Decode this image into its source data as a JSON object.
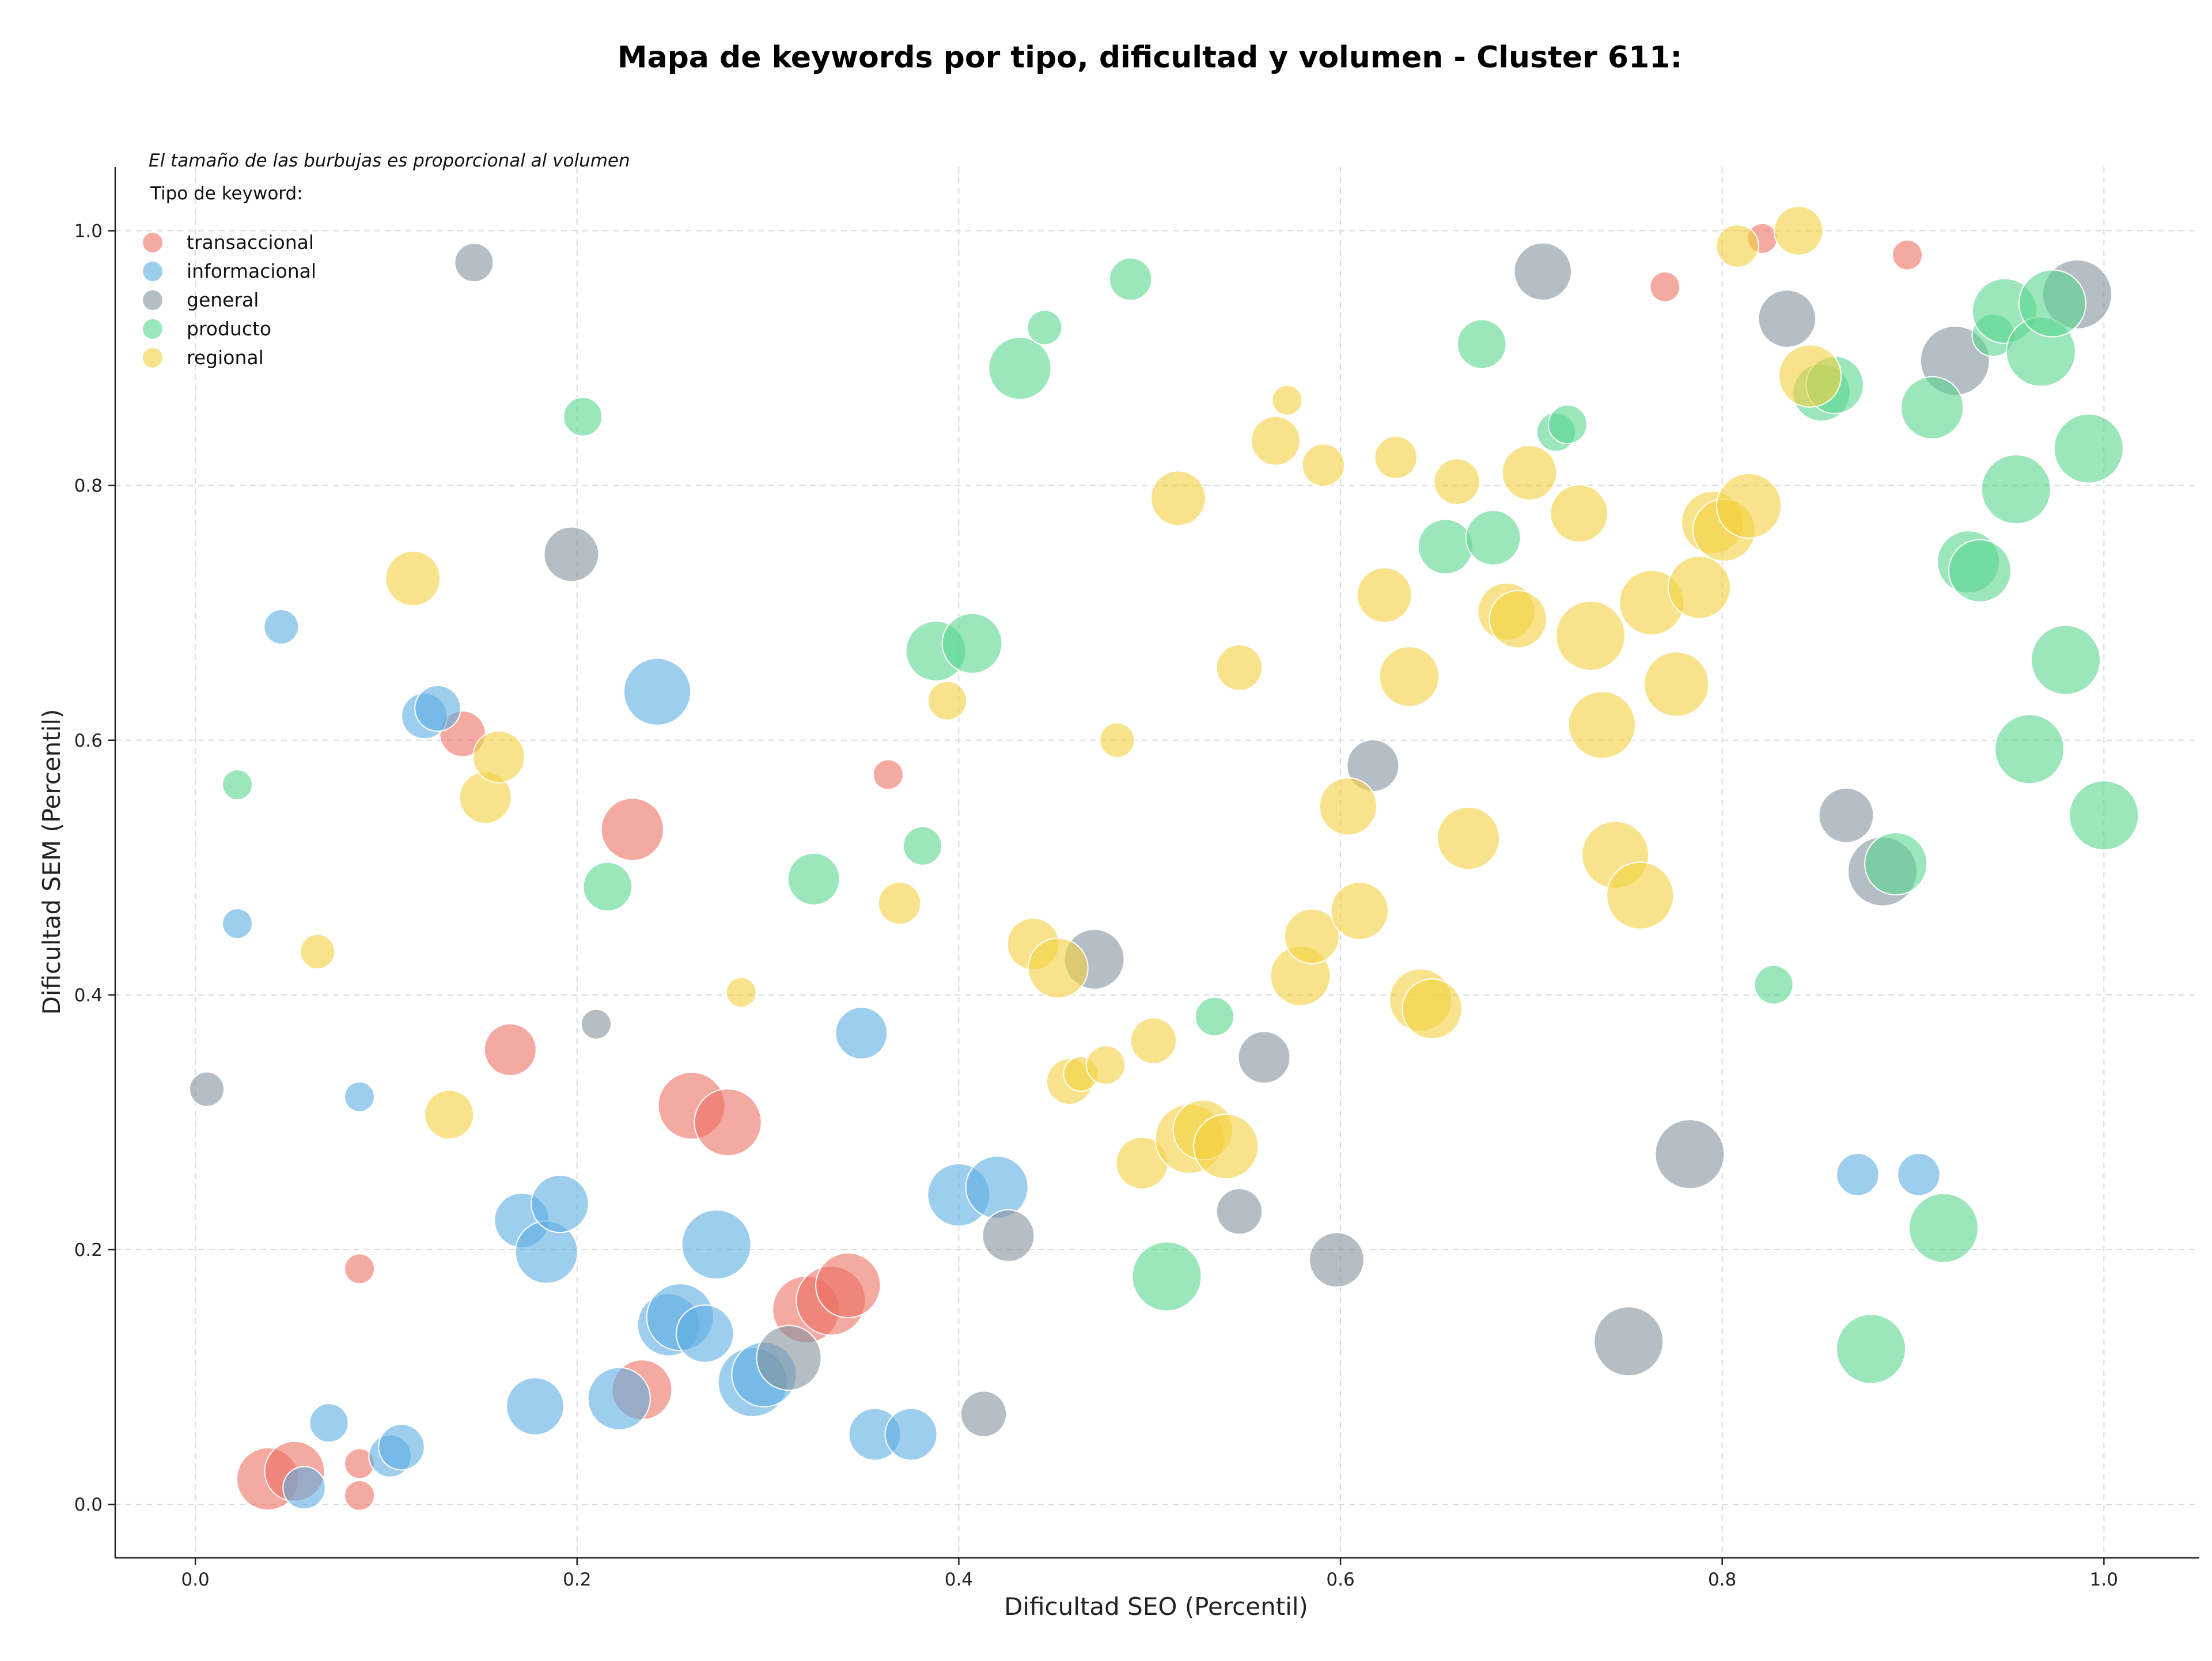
{
  "chart_data": {
    "type": "scatter",
    "title": "Mapa de keywords por tipo, dificultad y volumen - Cluster 611:",
    "xlabel": "Dificultad SEO (Percentil)",
    "ylabel": "Dificultad SEM (Percentil)",
    "xlim": [
      -0.042,
      1.05
    ],
    "ylim": [
      -0.042,
      1.05
    ],
    "x_ticks": [
      "0.0",
      "0.2",
      "0.4",
      "0.6",
      "0.8",
      "1.0"
    ],
    "y_ticks": [
      "0.0",
      "0.2",
      "0.4",
      "0.6",
      "0.8",
      "1.0"
    ],
    "grid": true,
    "annotation": "El tamaño de las burbujas es proporcional al volumen",
    "legend_title": "Tipo de keyword:",
    "legend_position": "top-left",
    "size_encoding": "volume",
    "series": [
      {
        "name": "transaccional",
        "color": "#ec7063",
        "points": [
          {
            "x": 0.038,
            "y": 0.02,
            "size": 13
          },
          {
            "x": 0.052,
            "y": 0.026,
            "size": 12
          },
          {
            "x": 0.086,
            "y": 0.007,
            "size": 3
          },
          {
            "x": 0.086,
            "y": 0.032,
            "size": 3
          },
          {
            "x": 0.086,
            "y": 0.185,
            "size": 3
          },
          {
            "x": 0.14,
            "y": 0.605,
            "size": 7
          },
          {
            "x": 0.165,
            "y": 0.357,
            "size": 9
          },
          {
            "x": 0.229,
            "y": 0.53,
            "size": 13
          },
          {
            "x": 0.234,
            "y": 0.09,
            "size": 12
          },
          {
            "x": 0.26,
            "y": 0.313,
            "size": 15
          },
          {
            "x": 0.279,
            "y": 0.3,
            "size": 15
          },
          {
            "x": 0.32,
            "y": 0.153,
            "size": 15
          },
          {
            "x": 0.333,
            "y": 0.16,
            "size": 16
          },
          {
            "x": 0.342,
            "y": 0.172,
            "size": 14
          },
          {
            "x": 0.363,
            "y": 0.573,
            "size": 3
          },
          {
            "x": 0.77,
            "y": 0.956,
            "size": 3
          },
          {
            "x": 0.821,
            "y": 0.994,
            "size": 3
          },
          {
            "x": 0.897,
            "y": 0.981,
            "size": 3
          }
        ]
      },
      {
        "name": "informacional",
        "color": "#5dade2",
        "points": [
          {
            "x": 0.022,
            "y": 0.456,
            "size": 3
          },
          {
            "x": 0.045,
            "y": 0.689,
            "size": 4
          },
          {
            "x": 0.057,
            "y": 0.013,
            "size": 6
          },
          {
            "x": 0.07,
            "y": 0.064,
            "size": 5
          },
          {
            "x": 0.086,
            "y": 0.32,
            "size": 3
          },
          {
            "x": 0.102,
            "y": 0.038,
            "size": 6
          },
          {
            "x": 0.108,
            "y": 0.045,
            "size": 7
          },
          {
            "x": 0.12,
            "y": 0.619,
            "size": 7
          },
          {
            "x": 0.127,
            "y": 0.625,
            "size": 7
          },
          {
            "x": 0.171,
            "y": 0.223,
            "size": 10
          },
          {
            "x": 0.178,
            "y": 0.077,
            "size": 11
          },
          {
            "x": 0.184,
            "y": 0.198,
            "size": 13
          },
          {
            "x": 0.191,
            "y": 0.236,
            "size": 11
          },
          {
            "x": 0.222,
            "y": 0.083,
            "size": 13
          },
          {
            "x": 0.242,
            "y": 0.638,
            "size": 15
          },
          {
            "x": 0.248,
            "y": 0.141,
            "size": 13
          },
          {
            "x": 0.254,
            "y": 0.147,
            "size": 15
          },
          {
            "x": 0.267,
            "y": 0.134,
            "size": 11
          },
          {
            "x": 0.273,
            "y": 0.204,
            "size": 16
          },
          {
            "x": 0.292,
            "y": 0.096,
            "size": 16
          },
          {
            "x": 0.298,
            "y": 0.102,
            "size": 14
          },
          {
            "x": 0.349,
            "y": 0.37,
            "size": 9
          },
          {
            "x": 0.356,
            "y": 0.055,
            "size": 9
          },
          {
            "x": 0.375,
            "y": 0.055,
            "size": 9
          },
          {
            "x": 0.4,
            "y": 0.243,
            "size": 13
          },
          {
            "x": 0.42,
            "y": 0.249,
            "size": 13
          },
          {
            "x": 0.871,
            "y": 0.259,
            "size": 6
          },
          {
            "x": 0.903,
            "y": 0.259,
            "size": 6
          }
        ]
      },
      {
        "name": "general",
        "color": "#85929e",
        "points": [
          {
            "x": 0.006,
            "y": 0.326,
            "size": 4
          },
          {
            "x": 0.146,
            "y": 0.975,
            "size": 5
          },
          {
            "x": 0.197,
            "y": 0.746,
            "size": 10
          },
          {
            "x": 0.21,
            "y": 0.377,
            "size": 3
          },
          {
            "x": 0.311,
            "y": 0.115,
            "size": 14
          },
          {
            "x": 0.413,
            "y": 0.071,
            "size": 7
          },
          {
            "x": 0.426,
            "y": 0.211,
            "size": 9
          },
          {
            "x": 0.471,
            "y": 0.428,
            "size": 12
          },
          {
            "x": 0.547,
            "y": 0.23,
            "size": 7
          },
          {
            "x": 0.56,
            "y": 0.351,
            "size": 9
          },
          {
            "x": 0.598,
            "y": 0.192,
            "size": 10
          },
          {
            "x": 0.617,
            "y": 0.58,
            "size": 9
          },
          {
            "x": 0.706,
            "y": 0.968,
            "size": 11
          },
          {
            "x": 0.751,
            "y": 0.128,
            "size": 16
          },
          {
            "x": 0.783,
            "y": 0.275,
            "size": 16
          },
          {
            "x": 0.834,
            "y": 0.931,
            "size": 11
          },
          {
            "x": 0.865,
            "y": 0.541,
            "size": 10
          },
          {
            "x": 0.884,
            "y": 0.497,
            "size": 16
          },
          {
            "x": 0.922,
            "y": 0.898,
            "size": 16
          },
          {
            "x": 0.986,
            "y": 0.95,
            "size": 16
          }
        ]
      },
      {
        "name": "producto",
        "color": "#58d68d",
        "points": [
          {
            "x": 0.022,
            "y": 0.565,
            "size": 3
          },
          {
            "x": 0.203,
            "y": 0.854,
            "size": 5
          },
          {
            "x": 0.216,
            "y": 0.485,
            "size": 8
          },
          {
            "x": 0.324,
            "y": 0.491,
            "size": 9
          },
          {
            "x": 0.381,
            "y": 0.517,
            "size": 5
          },
          {
            "x": 0.388,
            "y": 0.67,
            "size": 12
          },
          {
            "x": 0.407,
            "y": 0.676,
            "size": 12
          },
          {
            "x": 0.432,
            "y": 0.892,
            "size": 13
          },
          {
            "x": 0.445,
            "y": 0.924,
            "size": 4
          },
          {
            "x": 0.49,
            "y": 0.962,
            "size": 6
          },
          {
            "x": 0.509,
            "y": 0.179,
            "size": 16
          },
          {
            "x": 0.534,
            "y": 0.383,
            "size": 5
          },
          {
            "x": 0.655,
            "y": 0.752,
            "size": 10
          },
          {
            "x": 0.674,
            "y": 0.911,
            "size": 8
          },
          {
            "x": 0.68,
            "y": 0.759,
            "size": 10
          },
          {
            "x": 0.713,
            "y": 0.842,
            "size": 5
          },
          {
            "x": 0.719,
            "y": 0.848,
            "size": 5
          },
          {
            "x": 0.827,
            "y": 0.408,
            "size": 5
          },
          {
            "x": 0.852,
            "y": 0.873,
            "size": 11
          },
          {
            "x": 0.859,
            "y": 0.879,
            "size": 11
          },
          {
            "x": 0.878,
            "y": 0.122,
            "size": 16
          },
          {
            "x": 0.891,
            "y": 0.503,
            "size": 13
          },
          {
            "x": 0.91,
            "y": 0.861,
            "size": 13
          },
          {
            "x": 0.916,
            "y": 0.217,
            "size": 16
          },
          {
            "x": 0.929,
            "y": 0.74,
            "size": 13
          },
          {
            "x": 0.935,
            "y": 0.733,
            "size": 13
          },
          {
            "x": 0.942,
            "y": 0.918,
            "size": 6
          },
          {
            "x": 0.948,
            "y": 0.937,
            "size": 14
          },
          {
            "x": 0.954,
            "y": 0.797,
            "size": 16
          },
          {
            "x": 0.961,
            "y": 0.593,
            "size": 16
          },
          {
            "x": 0.967,
            "y": 0.905,
            "size": 16
          },
          {
            "x": 0.973,
            "y": 0.943,
            "size": 15
          },
          {
            "x": 0.98,
            "y": 0.663,
            "size": 16
          },
          {
            "x": 0.992,
            "y": 0.829,
            "size": 16
          },
          {
            "x": 1.0,
            "y": 0.541,
            "size": 16
          }
        ]
      },
      {
        "name": "regional",
        "color": "#f4d03f",
        "points": [
          {
            "x": 0.064,
            "y": 0.434,
            "size": 4
          },
          {
            "x": 0.114,
            "y": 0.727,
            "size": 10
          },
          {
            "x": 0.133,
            "y": 0.306,
            "size": 8
          },
          {
            "x": 0.152,
            "y": 0.555,
            "size": 9
          },
          {
            "x": 0.159,
            "y": 0.587,
            "size": 9
          },
          {
            "x": 0.286,
            "y": 0.402,
            "size": 3
          },
          {
            "x": 0.369,
            "y": 0.472,
            "size": 6
          },
          {
            "x": 0.394,
            "y": 0.631,
            "size": 5
          },
          {
            "x": 0.439,
            "y": 0.44,
            "size": 9
          },
          {
            "x": 0.452,
            "y": 0.421,
            "size": 12
          },
          {
            "x": 0.458,
            "y": 0.332,
            "size": 7
          },
          {
            "x": 0.464,
            "y": 0.338,
            "size": 4
          },
          {
            "x": 0.477,
            "y": 0.345,
            "size": 5
          },
          {
            "x": 0.483,
            "y": 0.6,
            "size": 4
          },
          {
            "x": 0.496,
            "y": 0.268,
            "size": 9
          },
          {
            "x": 0.502,
            "y": 0.364,
            "size": 7
          },
          {
            "x": 0.515,
            "y": 0.79,
            "size": 10
          },
          {
            "x": 0.521,
            "y": 0.287,
            "size": 16
          },
          {
            "x": 0.528,
            "y": 0.294,
            "size": 12
          },
          {
            "x": 0.54,
            "y": 0.281,
            "size": 14
          },
          {
            "x": 0.547,
            "y": 0.657,
            "size": 7
          },
          {
            "x": 0.566,
            "y": 0.835,
            "size": 8
          },
          {
            "x": 0.572,
            "y": 0.867,
            "size": 3
          },
          {
            "x": 0.579,
            "y": 0.415,
            "size": 12
          },
          {
            "x": 0.585,
            "y": 0.446,
            "size": 10
          },
          {
            "x": 0.591,
            "y": 0.816,
            "size": 6
          },
          {
            "x": 0.604,
            "y": 0.548,
            "size": 11
          },
          {
            "x": 0.61,
            "y": 0.466,
            "size": 11
          },
          {
            "x": 0.623,
            "y": 0.714,
            "size": 10
          },
          {
            "x": 0.629,
            "y": 0.822,
            "size": 6
          },
          {
            "x": 0.636,
            "y": 0.65,
            "size": 12
          },
          {
            "x": 0.642,
            "y": 0.396,
            "size": 13
          },
          {
            "x": 0.648,
            "y": 0.389,
            "size": 12
          },
          {
            "x": 0.661,
            "y": 0.803,
            "size": 7
          },
          {
            "x": 0.667,
            "y": 0.523,
            "size": 13
          },
          {
            "x": 0.687,
            "y": 0.701,
            "size": 11
          },
          {
            "x": 0.693,
            "y": 0.695,
            "size": 11
          },
          {
            "x": 0.699,
            "y": 0.81,
            "size": 10
          },
          {
            "x": 0.725,
            "y": 0.778,
            "size": 11
          },
          {
            "x": 0.731,
            "y": 0.682,
            "size": 16
          },
          {
            "x": 0.737,
            "y": 0.612,
            "size": 15
          },
          {
            "x": 0.744,
            "y": 0.51,
            "size": 15
          },
          {
            "x": 0.757,
            "y": 0.478,
            "size": 15
          },
          {
            "x": 0.763,
            "y": 0.708,
            "size": 14
          },
          {
            "x": 0.776,
            "y": 0.644,
            "size": 14
          },
          {
            "x": 0.788,
            "y": 0.72,
            "size": 13
          },
          {
            "x": 0.795,
            "y": 0.771,
            "size": 13
          },
          {
            "x": 0.801,
            "y": 0.765,
            "size": 13
          },
          {
            "x": 0.808,
            "y": 0.988,
            "size": 6
          },
          {
            "x": 0.814,
            "y": 0.784,
            "size": 14
          },
          {
            "x": 0.84,
            "y": 1.0,
            "size": 8
          },
          {
            "x": 0.846,
            "y": 0.886,
            "size": 13
          }
        ]
      }
    ]
  }
}
